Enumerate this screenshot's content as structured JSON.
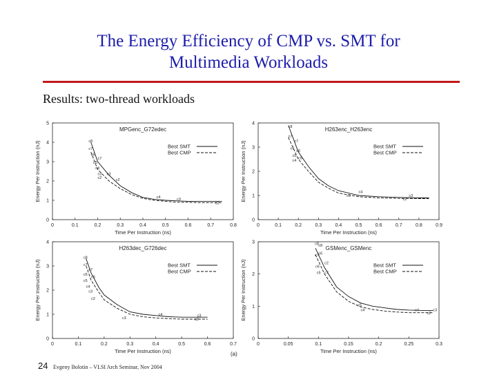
{
  "slide": {
    "title_line1": "The Energy Efficiency of CMP vs. SMT for",
    "title_line2": "Multimedia Workloads",
    "subtitle": "Results: two-thread workloads",
    "slide_number": "24",
    "footer": "Evgeny Bolotin – VLSI Arch Seminar, Nov 2004",
    "corner_label": "(a)"
  },
  "colors": {
    "title": "#1c1caa",
    "rule": "#c01818"
  },
  "chart_data": [
    {
      "type": "line",
      "title": "MPGenc_G72edec",
      "xlabel": "Time Per Instruction (ns)",
      "ylabel": "Energy Per Instruction (nJ)",
      "xlim": [
        0,
        0.8
      ],
      "ylim": [
        0,
        5
      ],
      "xticks": [
        "0",
        "0.1",
        "0.2",
        "0.3",
        "0.4",
        "0.5",
        "0.6",
        "0.7",
        "0.8"
      ],
      "yticks": [
        "0",
        "1",
        "2",
        "3",
        "4",
        "5"
      ],
      "legend": "top-right",
      "series": [
        {
          "name": "Best SMT",
          "dash": "solid",
          "x": [
            0.17,
            0.2,
            0.25,
            0.3,
            0.35,
            0.4,
            0.45,
            0.5,
            0.55,
            0.6,
            0.65,
            0.7,
            0.75
          ],
          "y": [
            4.0,
            3.0,
            2.3,
            1.75,
            1.4,
            1.15,
            1.05,
            1.0,
            0.97,
            0.95,
            0.95,
            0.95,
            0.95
          ]
        },
        {
          "name": "Best CMP",
          "dash": "dashed",
          "x": [
            0.17,
            0.2,
            0.25,
            0.3,
            0.35,
            0.4,
            0.45,
            0.5,
            0.55,
            0.6,
            0.65,
            0.7,
            0.75
          ],
          "y": [
            3.5,
            2.6,
            2.0,
            1.6,
            1.3,
            1.1,
            1.0,
            0.95,
            0.9,
            0.9,
            0.88,
            0.88,
            0.88
          ]
        }
      ],
      "annotations": [
        {
          "text": "c8",
          "x": 0.16,
          "y": 4.0
        },
        {
          "text": "c7",
          "x": 0.16,
          "y": 3.6
        },
        {
          "text": "c6",
          "x": 0.17,
          "y": 3.3
        },
        {
          "text": "c7",
          "x": 0.2,
          "y": 3.1
        },
        {
          "text": "c5",
          "x": 0.18,
          "y": 2.9
        },
        {
          "text": "c4",
          "x": 0.19,
          "y": 2.6
        },
        {
          "text": "c3",
          "x": 0.2,
          "y": 2.3
        },
        {
          "text": "c3",
          "x": 0.24,
          "y": 2.3
        },
        {
          "text": "c2",
          "x": 0.2,
          "y": 2.1
        },
        {
          "text": "c2",
          "x": 0.28,
          "y": 2.0
        },
        {
          "text": "c4",
          "x": 0.46,
          "y": 1.1
        },
        {
          "text": "c3",
          "x": 0.55,
          "y": 1.0
        },
        {
          "text": "c2",
          "x": 0.72,
          "y": 0.8
        }
      ]
    },
    {
      "type": "line",
      "title": "H263enc_H263enc",
      "xlabel": "Time Per Instruction (ns)",
      "ylabel": "Energy Per Instruction (nJ)",
      "xlim": [
        0,
        0.9
      ],
      "ylim": [
        0,
        4
      ],
      "xticks": [
        "0",
        "0.1",
        "0.2",
        "0.3",
        "0.4",
        "0.5",
        "0.6",
        "0.7",
        "0.8",
        "0.9"
      ],
      "yticks": [
        "0",
        "1",
        "2",
        "3",
        "4"
      ],
      "legend": "top-right",
      "series": [
        {
          "name": "Best SMT",
          "dash": "solid",
          "x": [
            0.15,
            0.2,
            0.25,
            0.3,
            0.35,
            0.4,
            0.5,
            0.6,
            0.7,
            0.8,
            0.85
          ],
          "y": [
            3.9,
            2.8,
            2.2,
            1.7,
            1.4,
            1.2,
            1.0,
            0.95,
            0.92,
            0.9,
            0.9
          ]
        },
        {
          "name": "Best CMP",
          "dash": "dashed",
          "x": [
            0.15,
            0.2,
            0.25,
            0.3,
            0.35,
            0.4,
            0.5,
            0.6,
            0.7,
            0.8,
            0.85
          ],
          "y": [
            3.4,
            2.5,
            2.0,
            1.55,
            1.3,
            1.1,
            0.95,
            0.9,
            0.88,
            0.87,
            0.87
          ]
        }
      ],
      "annotations": [
        {
          "text": "c8",
          "x": 0.15,
          "y": 3.8
        },
        {
          "text": "c7",
          "x": 0.15,
          "y": 3.4
        },
        {
          "text": "c7",
          "x": 0.18,
          "y": 3.2
        },
        {
          "text": "c6",
          "x": 0.16,
          "y": 2.9
        },
        {
          "text": "c6",
          "x": 0.19,
          "y": 2.8
        },
        {
          "text": "c5",
          "x": 0.17,
          "y": 2.6
        },
        {
          "text": "c5",
          "x": 0.2,
          "y": 2.5
        },
        {
          "text": "c4",
          "x": 0.17,
          "y": 2.4
        },
        {
          "text": "c4",
          "x": 0.5,
          "y": 1.1
        },
        {
          "text": "c3",
          "x": 0.44,
          "y": 0.95
        },
        {
          "text": "c3",
          "x": 0.75,
          "y": 0.95
        },
        {
          "text": "c2",
          "x": 0.72,
          "y": 0.8
        }
      ]
    },
    {
      "type": "line",
      "title": "H263dec_G726dec",
      "xlabel": "Time Per Instruction (ns)",
      "ylabel": "Energy Per Instruction (nJ)",
      "xlim": [
        0,
        0.7
      ],
      "ylim": [
        0,
        4
      ],
      "xticks": [
        "0",
        "0.1",
        "0.2",
        "0.3",
        "0.4",
        "0.5",
        "0.6",
        "0.7"
      ],
      "yticks": [
        "0",
        "1",
        "2",
        "3",
        "4"
      ],
      "legend": "top-right",
      "series": [
        {
          "name": "Best SMT",
          "dash": "solid",
          "x": [
            0.13,
            0.15,
            0.18,
            0.2,
            0.25,
            0.3,
            0.35,
            0.4,
            0.45,
            0.5,
            0.55,
            0.6
          ],
          "y": [
            3.3,
            2.7,
            2.1,
            1.8,
            1.4,
            1.1,
            1.0,
            0.95,
            0.9,
            0.88,
            0.88,
            0.88
          ]
        },
        {
          "name": "Best CMP",
          "dash": "dashed",
          "x": [
            0.13,
            0.15,
            0.18,
            0.2,
            0.25,
            0.3,
            0.35,
            0.4,
            0.45,
            0.5,
            0.55,
            0.6
          ],
          "y": [
            3.0,
            2.4,
            1.9,
            1.6,
            1.25,
            1.0,
            0.9,
            0.85,
            0.82,
            0.8,
            0.8,
            0.8
          ]
        }
      ],
      "annotations": [
        {
          "text": "c8",
          "x": 0.12,
          "y": 3.3
        },
        {
          "text": "c7",
          "x": 0.12,
          "y": 3.0
        },
        {
          "text": "c7",
          "x": 0.14,
          "y": 2.8
        },
        {
          "text": "c6",
          "x": 0.12,
          "y": 2.6
        },
        {
          "text": "c6",
          "x": 0.15,
          "y": 2.5
        },
        {
          "text": "c5",
          "x": 0.12,
          "y": 2.35
        },
        {
          "text": "c4",
          "x": 0.13,
          "y": 2.1
        },
        {
          "text": "c3",
          "x": 0.14,
          "y": 1.9
        },
        {
          "text": "c2",
          "x": 0.15,
          "y": 1.6
        },
        {
          "text": "c3",
          "x": 0.27,
          "y": 0.8
        },
        {
          "text": "c4",
          "x": 0.41,
          "y": 0.95
        },
        {
          "text": "c3",
          "x": 0.56,
          "y": 0.9
        },
        {
          "text": "c2",
          "x": 0.55,
          "y": 0.75
        }
      ]
    },
    {
      "type": "line",
      "title": "GSMenc_GSMenc",
      "xlabel": "Time Per Instruction (ns)",
      "ylabel": "Energy Per Instruction (nJ)",
      "xlim": [
        0,
        0.3
      ],
      "ylim": [
        0,
        3
      ],
      "xticks": [
        "0",
        "0.05",
        "0.1",
        "0.15",
        "0.2",
        "0.25",
        "0.3"
      ],
      "yticks": [
        "0",
        "1",
        "2",
        "3"
      ],
      "legend": "top-right",
      "series": [
        {
          "name": "Best SMT",
          "dash": "solid",
          "x": [
            0.095,
            0.11,
            0.13,
            0.15,
            0.17,
            0.19,
            0.21,
            0.23,
            0.25,
            0.27,
            0.29
          ],
          "y": [
            2.8,
            2.2,
            1.6,
            1.3,
            1.1,
            1.0,
            0.95,
            0.9,
            0.88,
            0.87,
            0.87
          ]
        },
        {
          "name": "Best CMP",
          "dash": "dashed",
          "x": [
            0.095,
            0.11,
            0.13,
            0.15,
            0.17,
            0.19,
            0.21,
            0.23,
            0.25,
            0.27,
            0.29
          ],
          "y": [
            2.6,
            2.0,
            1.45,
            1.15,
            0.98,
            0.9,
            0.85,
            0.82,
            0.8,
            0.8,
            0.8
          ]
        }
      ],
      "annotations": [
        {
          "text": "c8",
          "x": 0.094,
          "y": 2.9
        },
        {
          "text": "c8",
          "x": 0.1,
          "y": 2.85
        },
        {
          "text": "c7",
          "x": 0.094,
          "y": 2.55
        },
        {
          "text": "c6",
          "x": 0.1,
          "y": 2.6
        },
        {
          "text": "c6",
          "x": 0.095,
          "y": 2.2
        },
        {
          "text": "c5",
          "x": 0.097,
          "y": 2.0
        },
        {
          "text": "c2",
          "x": 0.11,
          "y": 2.3
        },
        {
          "text": "c7",
          "x": 0.11,
          "y": 2.0
        },
        {
          "text": "c5",
          "x": 0.165,
          "y": 1.0
        },
        {
          "text": "c4",
          "x": 0.17,
          "y": 0.85
        },
        {
          "text": "c4",
          "x": 0.26,
          "y": 0.85
        },
        {
          "text": "c3",
          "x": 0.29,
          "y": 0.85
        },
        {
          "text": "c2",
          "x": 0.28,
          "y": 0.75
        }
      ]
    }
  ]
}
